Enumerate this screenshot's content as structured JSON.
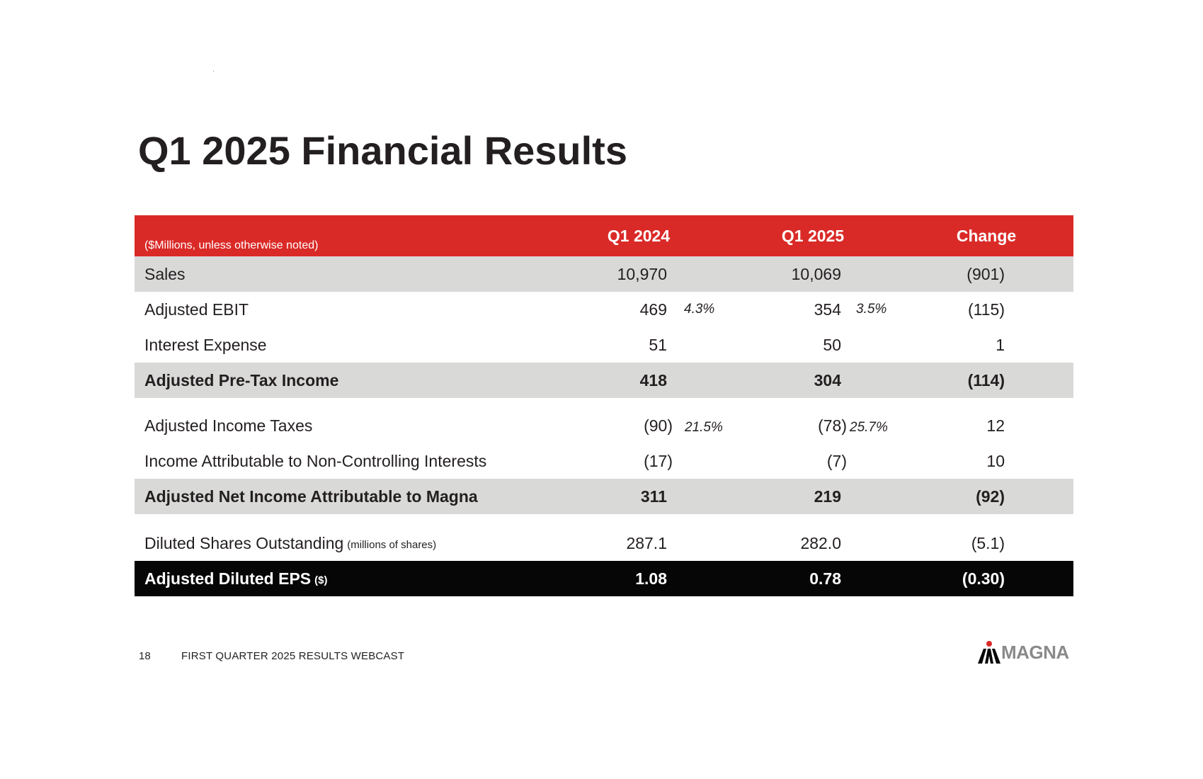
{
  "slide": {
    "title": "Q1 2025 Financial Results",
    "page_number": "18",
    "footer": "FIRST QUARTER 2025 RESULTS WEBCAST",
    "logo_text": "MAGNA"
  },
  "colors": {
    "header_red": "#da2a27",
    "shade_gray": "#d9d9d8",
    "eps_black": "#060606",
    "logo_gray": "#8a8a8a"
  },
  "table": {
    "unit_note": "($Millions, unless otherwise noted)",
    "columns": [
      "Q1 2024",
      "Q1 2025",
      "Change"
    ],
    "rows": [
      {
        "label": "Sales",
        "q1_2024": "10,970",
        "q1_2025": "10,069",
        "change": "(901)"
      },
      {
        "label": "Adjusted EBIT",
        "q1_2024": "469",
        "q1_2024_pct": "4.3%",
        "q1_2025": "354",
        "q1_2025_pct": "3.5%",
        "change": "(115)"
      },
      {
        "label": "Interest Expense",
        "q1_2024": "51",
        "q1_2025": "50",
        "change": "1"
      },
      {
        "label": "Adjusted Pre-Tax Income",
        "q1_2024": "418",
        "q1_2025": "304",
        "change": "(114)"
      },
      {
        "label": "Adjusted Income Taxes",
        "q1_2024": "(90)",
        "q1_2024_pct": "21.5%",
        "q1_2025": "(78)",
        "q1_2025_pct": "25.7%",
        "change": "12"
      },
      {
        "label": "Income Attributable to Non-Controlling Interests",
        "q1_2024": "(17)",
        "q1_2025": "(7)",
        "change": "10"
      },
      {
        "label": "Adjusted Net Income Attributable to Magna",
        "q1_2024": "311",
        "q1_2025": "219",
        "change": "(92)"
      },
      {
        "label": "Diluted Shares Outstanding",
        "label_note": "(millions of shares)",
        "q1_2024": "287.1",
        "q1_2025": "282.0",
        "change": "(5.1)"
      },
      {
        "label": "Adjusted Diluted EPS",
        "label_note": "($)",
        "q1_2024": "1.08",
        "q1_2025": "0.78",
        "change": "(0.30)"
      }
    ]
  }
}
